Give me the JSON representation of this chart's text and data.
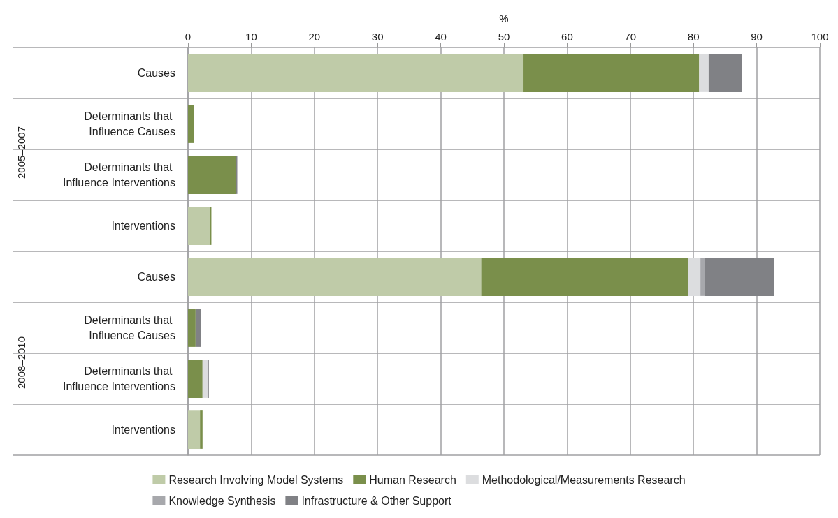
{
  "chart_data": {
    "type": "bar",
    "orientation": "horizontal",
    "stacked": true,
    "xlabel": "%",
    "categories": [
      "Causes",
      "Determinants that Influence Causes",
      "Determinants that Influence Interventions",
      "Interventions",
      "Causes",
      "Determinants that Influence Causes",
      "Determinants that Influence Interventions",
      "Interventions"
    ],
    "series": [
      {
        "name": "Research Involving Model Systems",
        "color": "#bfcba8",
        "values": [
          53.1,
          0,
          0,
          3.5,
          46.4,
          0,
          0,
          1.9
        ]
      },
      {
        "name": "Human Research",
        "color": "#7a8f4b",
        "values": [
          27.8,
          0.9,
          7.6,
          0.2,
          32.8,
          1.2,
          2.3,
          0.4
        ]
      },
      {
        "name": "Methodological/Measurements Research",
        "color": "#dcdddf",
        "values": [
          1.5,
          0,
          0,
          0,
          1.9,
          0,
          0.9,
          0
        ]
      },
      {
        "name": "Knowledge Synthesis",
        "color": "#a7a8ac",
        "values": [
          0,
          0,
          0,
          0,
          0.7,
          0,
          0,
          0
        ]
      },
      {
        "name": "Infrastructure & Other Support",
        "color": "#808185",
        "values": [
          5.3,
          0,
          0.2,
          0,
          10.9,
          0.9,
          0.1,
          0
        ]
      }
    ],
    "xlim": [
      0,
      100
    ],
    "xticks": [
      0,
      10,
      20,
      30,
      40,
      50,
      60,
      70,
      80,
      90,
      100
    ],
    "annotations": [
      "2005–2007",
      "2008–2010"
    ],
    "grid": true,
    "legend": "bottom"
  }
}
